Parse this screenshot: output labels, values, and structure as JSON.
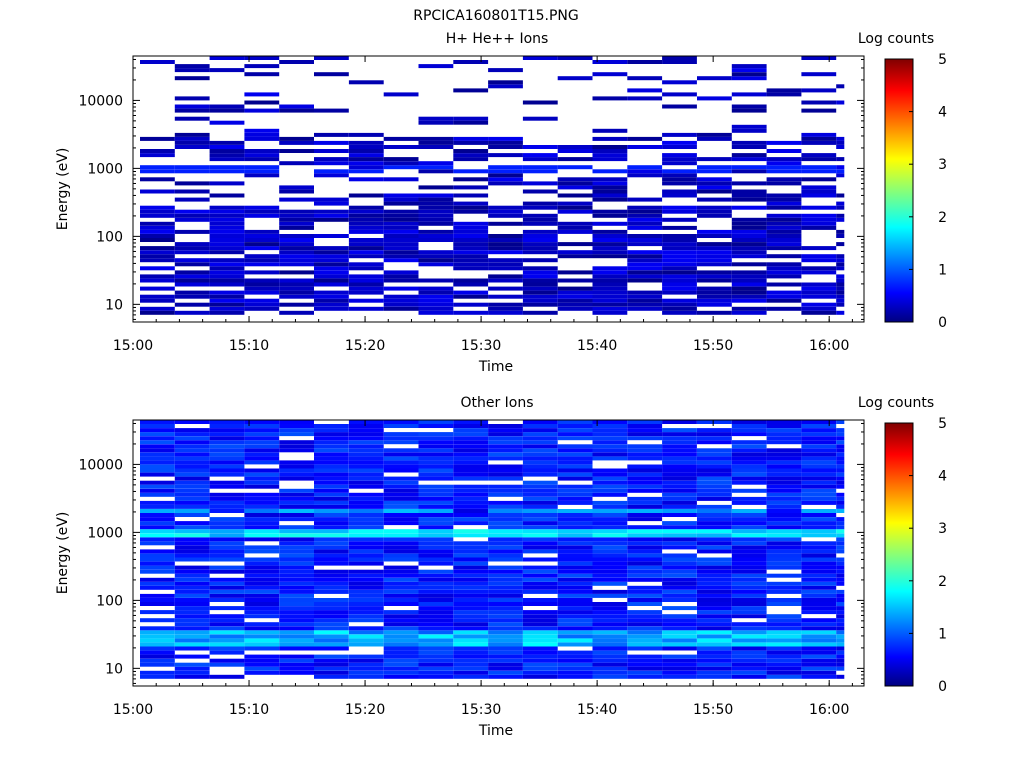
{
  "figure": {
    "title": "RPCICA160801T15.PNG"
  },
  "colorbar": {
    "label": "Log counts",
    "min": 0,
    "max": 5,
    "ticks": [
      "0",
      "1",
      "2",
      "3",
      "4",
      "5"
    ],
    "colors": [
      "#000080",
      "#0000ff",
      "#00ffff",
      "#ffff00",
      "#ff0000",
      "#800000"
    ]
  },
  "chart_data": [
    {
      "type": "heatmap",
      "title": "H+ He++ Ions",
      "xlabel": "Time",
      "ylabel": "Energy (eV)",
      "x_ticks": [
        "15:00",
        "15:10",
        "15:20",
        "15:30",
        "15:40",
        "15:50",
        "16:00"
      ],
      "y_ticks": [
        "10",
        "100",
        "1000",
        "10000"
      ],
      "y_scale": "log",
      "ylim": [
        5.5,
        45000
      ],
      "xlim": [
        "15:00",
        "16:03"
      ],
      "time_bins": [
        "15:00",
        "15:03",
        "15:06",
        "15:09",
        "15:12",
        "15:15",
        "15:18",
        "15:21",
        "15:24",
        "15:27",
        "15:30",
        "15:33",
        "15:36",
        "15:39",
        "15:42",
        "15:45",
        "15:48",
        "15:51",
        "15:54",
        "15:57",
        "16:00"
      ],
      "energy_bins": 64,
      "value_range": [
        0,
        5
      ],
      "typical_values": "mostly 0-0.6 log counts, sparse coverage above 1000 eV, denser below 300 eV"
    },
    {
      "type": "heatmap",
      "title": "Other Ions",
      "xlabel": "Time",
      "ylabel": "Energy (eV)",
      "x_ticks": [
        "15:00",
        "15:10",
        "15:20",
        "15:30",
        "15:40",
        "15:50",
        "16:00"
      ],
      "y_ticks": [
        "10",
        "100",
        "1000",
        "10000"
      ],
      "y_scale": "log",
      "ylim": [
        5.5,
        45000
      ],
      "xlim": [
        "15:00",
        "16:03"
      ],
      "time_bins": [
        "15:00",
        "15:03",
        "15:06",
        "15:09",
        "15:12",
        "15:15",
        "15:18",
        "15:21",
        "15:24",
        "15:27",
        "15:30",
        "15:33",
        "15:36",
        "15:39",
        "15:42",
        "15:45",
        "15:48",
        "15:51",
        "15:54",
        "15:57",
        "16:00"
      ],
      "energy_bins": 64,
      "value_range": [
        0,
        5
      ],
      "typical_values": "mostly 0.3-1.0 log counts; bright bands near 1000 eV, 2000 eV and 20-30 eV reaching about 1.5-2.2"
    }
  ]
}
